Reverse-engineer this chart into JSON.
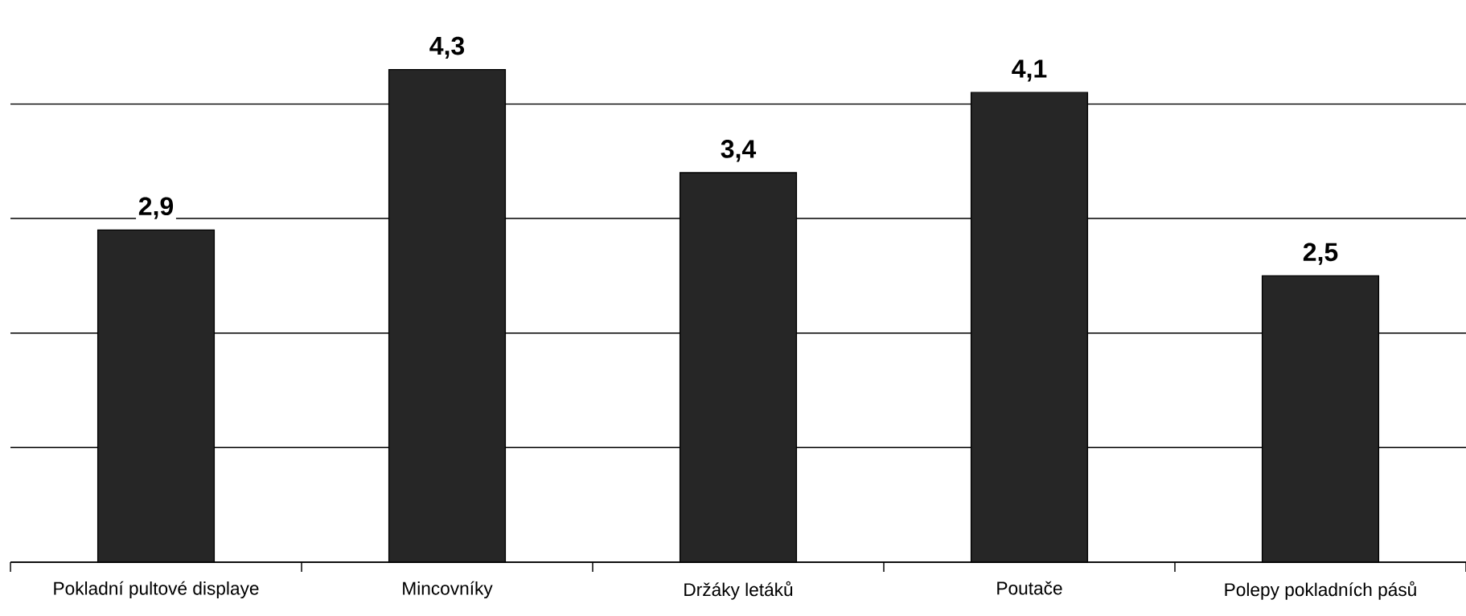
{
  "chart_data": {
    "type": "bar",
    "categories": [
      "Pokladní pultové displaye",
      "Mincovníky",
      "Držáky letáků",
      "Poutače",
      "Polepy pokladních pásů"
    ],
    "values": [
      2.9,
      4.3,
      3.4,
      4.1,
      2.5
    ],
    "value_labels": [
      "2,9",
      "4,3",
      "3,4",
      "4,1",
      "2,5"
    ],
    "color": "#262626",
    "grid": "y",
    "tick_labels": "x"
  }
}
